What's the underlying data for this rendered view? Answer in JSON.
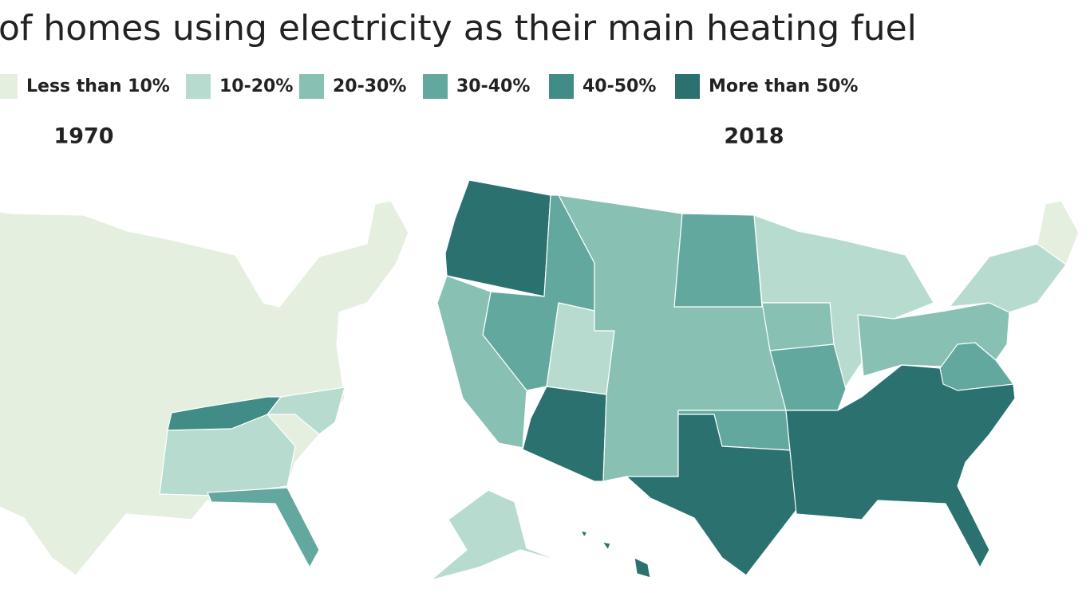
{
  "title": "of homes using electricity as their main heating fuel",
  "legend": {
    "items": [
      {
        "label": "Less than 10%",
        "color": "#e4efe0"
      },
      {
        "label": "10-20%",
        "color": "#b7dccf"
      },
      {
        "label": "20-30%",
        "color": "#88c0b4"
      },
      {
        "label": "30-40%",
        "color": "#63a89f"
      },
      {
        "label": "40-50%",
        "color": "#428c88"
      },
      {
        "label": "More than 50%",
        "color": "#2a716f"
      }
    ]
  },
  "maps": [
    {
      "title": "1970"
    },
    {
      "title": "2018"
    }
  ]
}
